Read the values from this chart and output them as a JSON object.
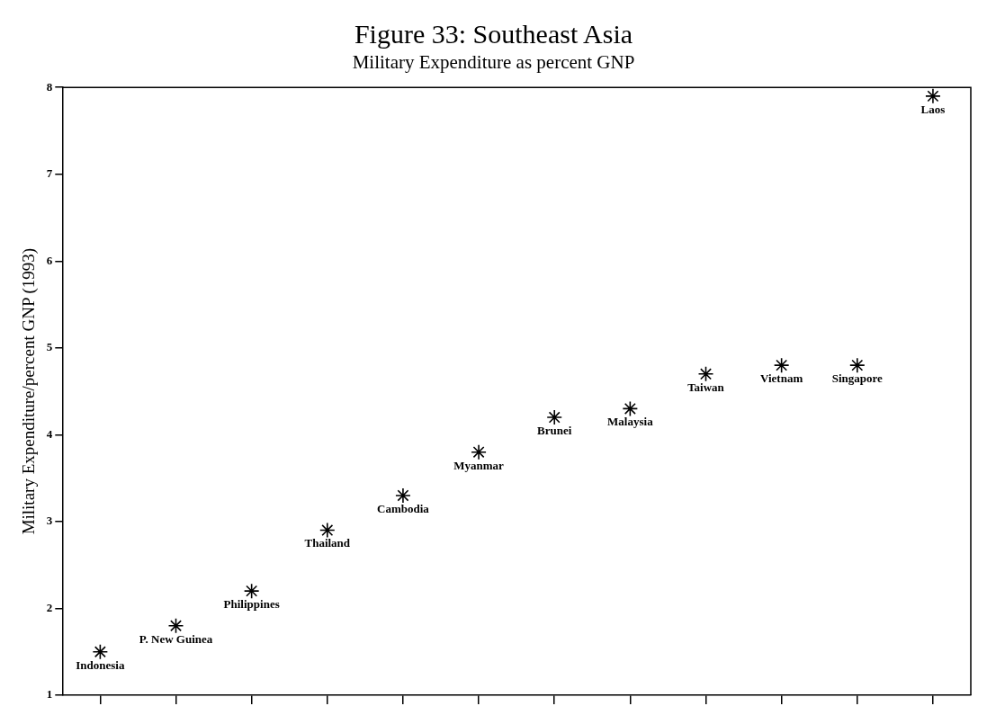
{
  "chart_data": {
    "type": "scatter",
    "title": "Figure 33: Southeast Asia",
    "subtitle": "Military Expenditure as percent GNP",
    "ylabel": "Military Expenditure/percent GNP (1993)",
    "categories": [
      "Indonesia",
      "P. New Guinea",
      "Philippines",
      "Thailand",
      "Cambodia",
      "Myanmar",
      "Brunei",
      "Malaysia",
      "Taiwan",
      "Vietnam",
      "Singapore",
      "Laos"
    ],
    "values": [
      1.5,
      1.8,
      2.2,
      2.9,
      3.3,
      3.8,
      4.2,
      4.3,
      4.7,
      4.8,
      4.8,
      7.9
    ],
    "color": "#000000",
    "marker": "cross",
    "ylim": [
      1,
      8
    ],
    "yticks": [
      1,
      2,
      3,
      4,
      5,
      6,
      7,
      8
    ],
    "grid": false,
    "legend": false,
    "tick_labels": "y"
  }
}
